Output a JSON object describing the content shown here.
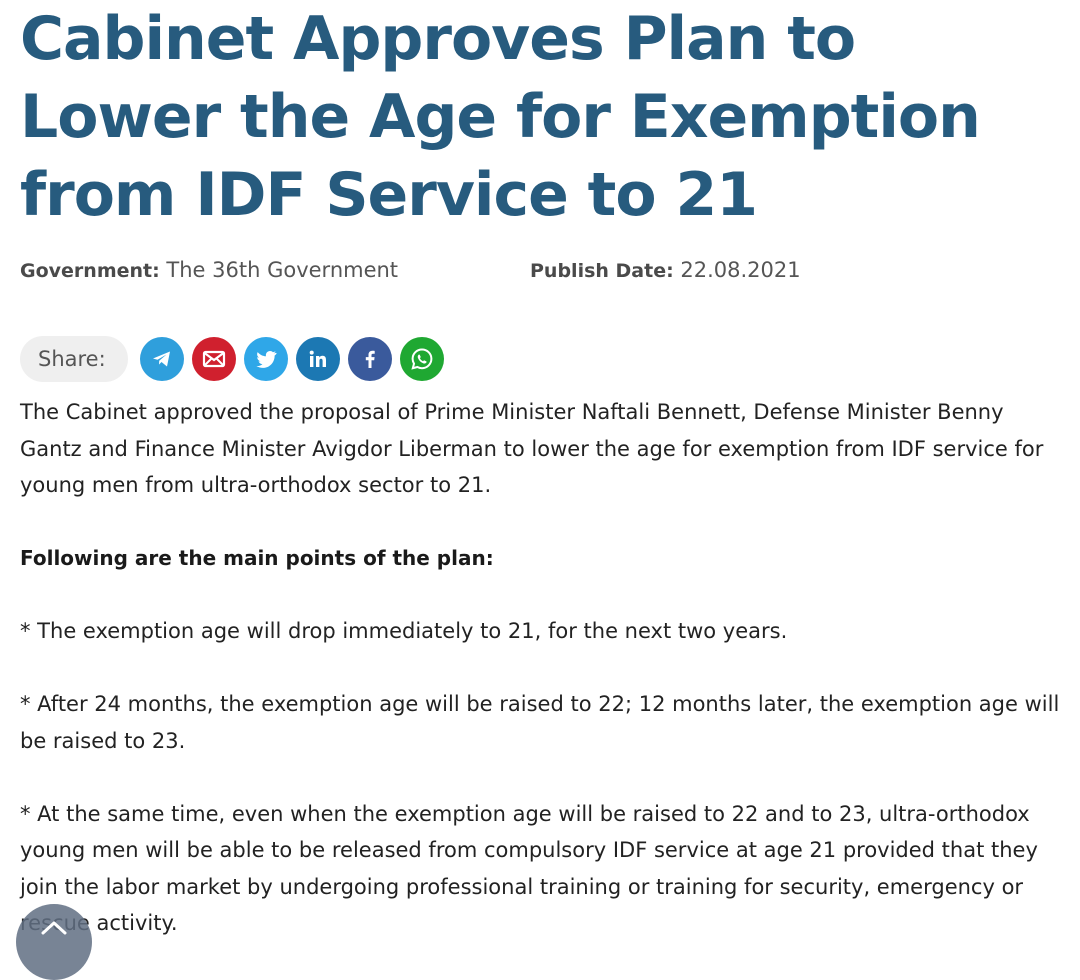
{
  "article": {
    "title": "Cabinet Approves Plan to Lower the Age for Exemption from IDF Service to 21",
    "meta": {
      "government_label": "Government:",
      "government_value": "The 36th Government",
      "publish_label": "Publish Date:",
      "publish_value": "22.08.2021"
    },
    "share": {
      "label": "Share:",
      "icons": [
        "telegram-icon",
        "email-icon",
        "twitter-icon",
        "linkedin-icon",
        "facebook-icon",
        "whatsapp-icon"
      ]
    },
    "intro": "The Cabinet approved the proposal of Prime Minister Naftali Bennett, Defense Minister Benny Gantz and Finance Minister Avigdor Liberman to lower the age for exemption from IDF service for young men from ultra-orthodox sector to 21.",
    "subheading": "Following are the main points of the plan:",
    "points": [
      "* The exemption age will drop immediately to 21, for the next two years.",
      "* After 24 months, the exemption age will be raised to 22; 12 months later, the exemption age will be raised to 23.",
      "* At the same time, even when the exemption age will be raised to 22 and to 23, ultra-orthodox young men will be able to be released from compulsory IDF service at age 21 provided that they join the labor market by undergoing professional training or training for security, emergency or rescue activity."
    ]
  },
  "colors": {
    "title": "#275b7e",
    "telegram": "#2f9fdc",
    "email": "#d0202e",
    "twitter": "#2fa7e8",
    "linkedin": "#1c78b3",
    "facebook": "#3a5a9c",
    "whatsapp": "#1fa832"
  },
  "scroll_top": {
    "icon": "chevron-up-icon"
  }
}
